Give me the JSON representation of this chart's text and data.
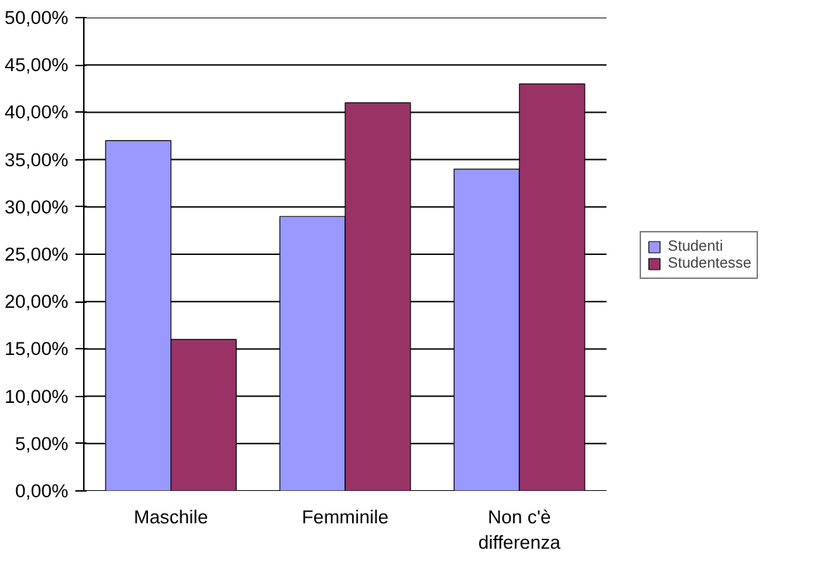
{
  "chart_data": {
    "type": "bar",
    "categories": [
      "Maschile",
      "Femminile",
      "Non c'è differenza"
    ],
    "series": [
      {
        "name": "Studenti",
        "color": "#9999ff",
        "values": [
          37,
          29,
          34
        ]
      },
      {
        "name": "Studentesse",
        "color": "#993366",
        "values": [
          16,
          41,
          43
        ]
      }
    ],
    "ylim": [
      0,
      50
    ],
    "yticks": [
      {
        "value": 0,
        "label": "0,00%"
      },
      {
        "value": 5,
        "label": "5,00%"
      },
      {
        "value": 10,
        "label": "10,00%"
      },
      {
        "value": 15,
        "label": "15,00%"
      },
      {
        "value": 20,
        "label": "20,00%"
      },
      {
        "value": 25,
        "label": "25,00%"
      },
      {
        "value": 30,
        "label": "30,00%"
      },
      {
        "value": 35,
        "label": "35,00%"
      },
      {
        "value": 40,
        "label": "40,00%"
      },
      {
        "value": 45,
        "label": "45,00%"
      },
      {
        "value": 50,
        "label": "50,00%"
      }
    ],
    "grid": "y",
    "legend": "right"
  }
}
